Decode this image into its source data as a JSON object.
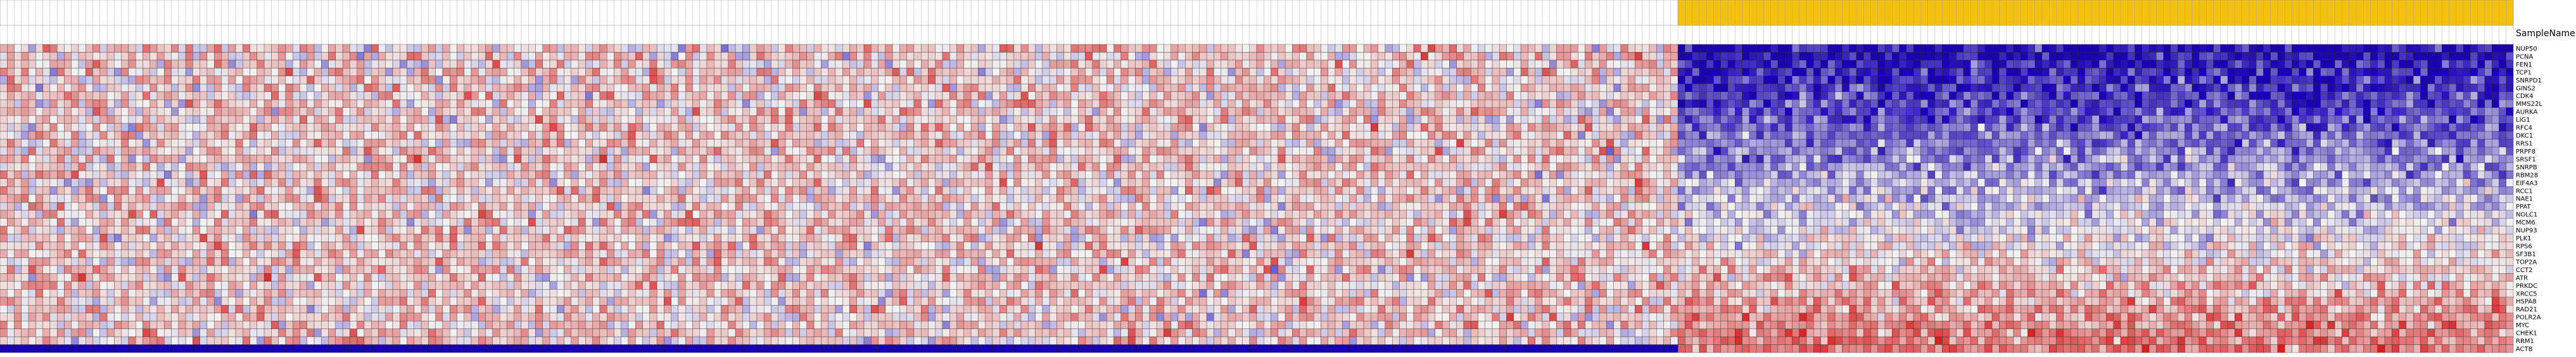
{
  "chart_data": {
    "type": "heatmap",
    "row_header": "SampleName",
    "rows": [
      "NUP50",
      "PCNA",
      "FEN1",
      "TCP1",
      "SNRPD1",
      "GINS2",
      "CDK4",
      "MMS22L",
      "AURKA",
      "LIG1",
      "RFC4",
      "DKC1",
      "RRS1",
      "PRPF8",
      "SRSF1",
      "SNRPB",
      "RBM28",
      "EIF4A3",
      "RCC1",
      "NAE1",
      "PPAT",
      "NOLC1",
      "MCM6",
      "NUP93",
      "PLK1",
      "RPS6",
      "SF3B1",
      "TOP2A",
      "CCT2",
      "ATR",
      "PRKDC",
      "XRCC5",
      "HSPA8",
      "RAD21",
      "POLR2A",
      "MYC",
      "CHEK1",
      "RRM1",
      "ACTB"
    ],
    "n_columns": 352,
    "group_split_column": 235,
    "group_header_colors": {
      "group_a": "#ffffff",
      "group_b": "#f3c10e"
    },
    "color_scale": {
      "low": "#1a00b4",
      "mid": "#f2f2f2",
      "high": "#d62020",
      "range": [
        -3,
        3
      ]
    },
    "gridlines": true,
    "legend": "none"
  }
}
